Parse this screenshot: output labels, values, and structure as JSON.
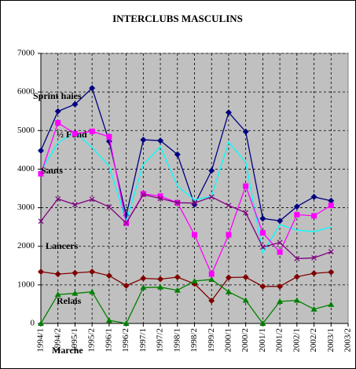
{
  "chart_data": {
    "type": "line",
    "title": "INTERCLUBS MASCULINS",
    "categories": [
      "1994/1",
      "1994/2",
      "1995/1",
      "1995/2",
      "1996/1",
      "1996/2",
      "1997/1",
      "1997/2",
      "1998/1",
      "1998/2",
      "1999/2",
      "2000/1",
      "2000/2",
      "2001/1",
      "2001/2",
      "2002/1",
      "2002/2",
      "2003/1",
      "2003/2"
    ],
    "series": [
      {
        "name": "Sprint haies",
        "color": "#000080",
        "marker": "diamond",
        "values": [
          4480,
          5500,
          5680,
          6100,
          4720,
          2800,
          4760,
          4740,
          4380,
          3080,
          3960,
          5470,
          4970,
          2720,
          2660,
          3030,
          3280,
          3180,
          null
        ]
      },
      {
        "name": "½ Fond",
        "color": "#00ffff",
        "marker": "none",
        "values": [
          3950,
          4680,
          4960,
          4560,
          4080,
          2650,
          4120,
          4580,
          3560,
          3200,
          3300,
          4700,
          4180,
          1830,
          2560,
          2420,
          2380,
          2500,
          null
        ]
      },
      {
        "name": "Sauts",
        "color": "#ff00ff",
        "marker": "square",
        "values": [
          3880,
          5200,
          4920,
          4980,
          4840,
          2600,
          3360,
          3300,
          3130,
          2300,
          1280,
          2300,
          3560,
          2350,
          1850,
          2820,
          2790,
          3060,
          null
        ]
      },
      {
        "name": "Lancers",
        "color": "#800080",
        "marker": "x",
        "values": [
          2650,
          3230,
          3080,
          3220,
          3020,
          2600,
          3340,
          3240,
          3130,
          3120,
          3280,
          3060,
          2870,
          1980,
          2100,
          1680,
          1700,
          1860,
          null
        ]
      },
      {
        "name": "Relais",
        "color": "#800000",
        "marker": "diamond",
        "values": [
          1340,
          1280,
          1310,
          1340,
          1240,
          980,
          1170,
          1150,
          1200,
          1030,
          590,
          1190,
          1200,
          960,
          960,
          1210,
          1300,
          1330,
          null
        ]
      },
      {
        "name": "Marche",
        "color": "#008000",
        "marker": "triangle",
        "values": [
          0,
          750,
          780,
          820,
          80,
          0,
          930,
          940,
          860,
          1100,
          1140,
          820,
          600,
          0,
          570,
          600,
          370,
          490,
          null
        ]
      }
    ],
    "ylim": [
      0,
      7000
    ],
    "yticks": [
      0,
      1000,
      2000,
      3000,
      4000,
      5000,
      6000,
      7000
    ],
    "grid": true
  }
}
